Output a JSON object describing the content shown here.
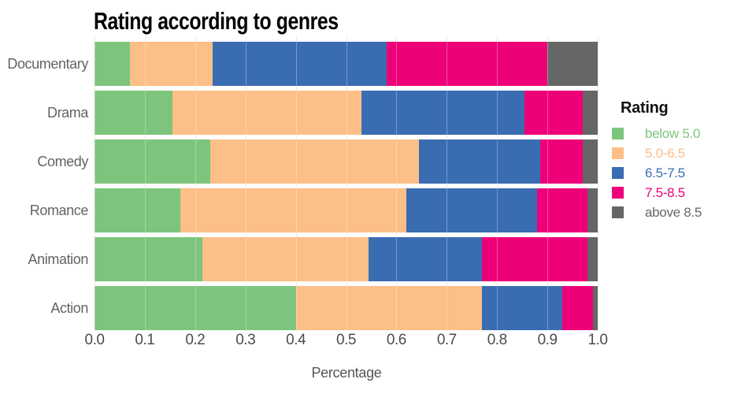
{
  "chart_data": {
    "type": "bar",
    "orientation": "horizontal",
    "stacked": true,
    "title": "Rating according to genres",
    "xlabel": "Percentage",
    "legend_title": "Rating",
    "legend_position": "right",
    "grid": true,
    "gridline_color": "#f4dbdb",
    "categories": [
      "Documentary",
      "Drama",
      "Comedy",
      "Romance",
      "Animation",
      "Action"
    ],
    "xlim": [
      0.0,
      1.0
    ],
    "xticks": [
      "0.0",
      "0.1",
      "0.2",
      "0.3",
      "0.4",
      "0.5",
      "0.6",
      "0.7",
      "0.8",
      "0.9",
      "1.0"
    ],
    "series": [
      {
        "name": "below 5.0",
        "color": "#7dc57d",
        "values": [
          0.07,
          0.155,
          0.23,
          0.17,
          0.215,
          0.4
        ]
      },
      {
        "name": "5.0-6.5",
        "color": "#fcbf87",
        "values": [
          0.165,
          0.375,
          0.415,
          0.45,
          0.33,
          0.37
        ]
      },
      {
        "name": "6.5-7.5",
        "color": "#3a6cb2",
        "values": [
          0.345,
          0.325,
          0.24,
          0.26,
          0.225,
          0.16
        ]
      },
      {
        "name": "7.5-8.5",
        "color": "#ee0079",
        "values": [
          0.32,
          0.115,
          0.085,
          0.1,
          0.21,
          0.06
        ]
      },
      {
        "name": "above 8.5",
        "color": "#666666",
        "values": [
          0.1,
          0.03,
          0.03,
          0.02,
          0.02,
          0.01
        ]
      }
    ]
  }
}
